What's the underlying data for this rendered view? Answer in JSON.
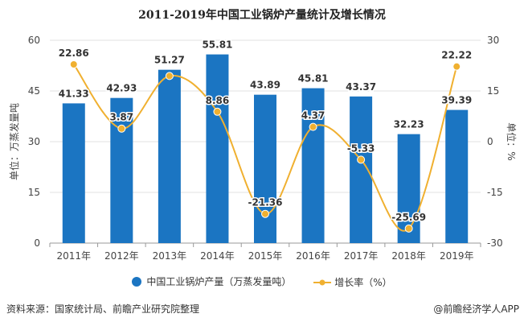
{
  "title": "2011-2019年中国工业锅炉产量统计及增长情况",
  "chart_data": {
    "type": "bar+line",
    "title": "2011-2019年中国工业锅炉产量统计及增长情况",
    "categories": [
      "2011年",
      "2012年",
      "2013年",
      "2014年",
      "2015年",
      "2016年",
      "2017年",
      "2018年",
      "2019年"
    ],
    "series": [
      {
        "name": "中国工业锅炉产量（万蒸发量吨）",
        "type": "bar",
        "axis": "left",
        "color": "#1b75c2",
        "values": [
          41.33,
          42.93,
          51.27,
          55.81,
          43.89,
          45.81,
          43.37,
          32.23,
          39.39
        ],
        "labels": [
          "41.33",
          "42.93",
          "51.27",
          "55.81",
          "43.89",
          "45.81",
          "43.37",
          "32.23",
          "39.39"
        ]
      },
      {
        "name": "增长率（%）",
        "type": "line",
        "axis": "right",
        "color": "#f0b030",
        "values": [
          22.86,
          3.87,
          19.43,
          8.86,
          -21.36,
          4.37,
          -5.33,
          -25.69,
          22.22
        ],
        "labels": [
          "22.86",
          "3.87",
          "",
          "8.86",
          "-21.36",
          "4.37",
          "-5.33",
          "-25.69",
          "22.22"
        ]
      }
    ],
    "ylabel_left": "单位：万蒸发量吨",
    "ylabel_right": "单位：%",
    "ylim_left": [
      0,
      60
    ],
    "yticks_left": [
      "0",
      "15",
      "30",
      "45",
      "60"
    ],
    "ylim_right": [
      -30,
      30
    ],
    "yticks_right": [
      "-30",
      "-15",
      "0",
      "15",
      "30"
    ],
    "grid": true,
    "legend": "bottom"
  },
  "source": "资料来源：国家统计局、前瞻产业研究院整理",
  "brand": "@前瞻经济学人APP"
}
